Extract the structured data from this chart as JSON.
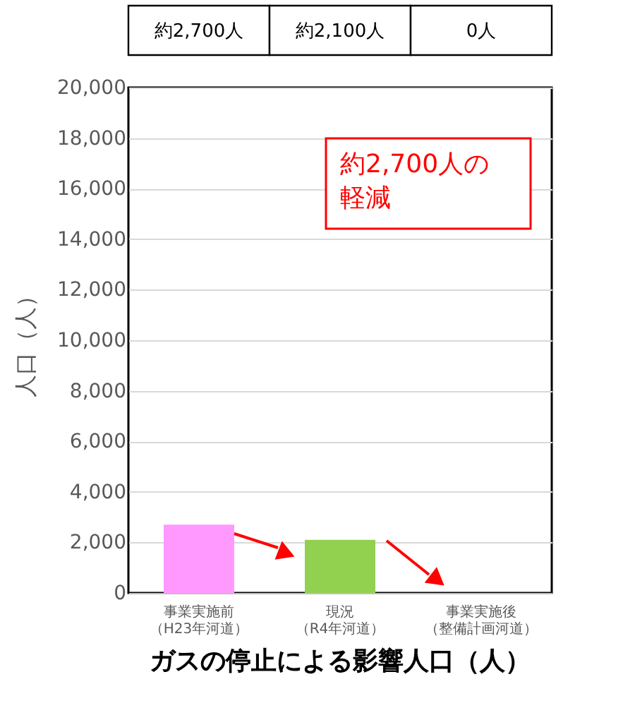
{
  "chart_data": {
    "type": "bar",
    "title": "ガスの停止による影響人口（人）",
    "ylabel": "人口（人）",
    "categories": [
      "事業実施前（H23年河道）",
      "現況（R4年河道）",
      "事業実施後（整備計画河道）"
    ],
    "values": [
      2700,
      2100,
      0
    ],
    "colors": [
      "#ff99ff",
      "#92d050",
      "#4472c4"
    ],
    "value_labels": [
      "約2,700人",
      "約2,100人",
      "0人"
    ],
    "annotations": [
      "約2,700人の軽減"
    ],
    "ylim": [
      0,
      20000
    ],
    "yticks": [
      {
        "value": 0,
        "label": "0"
      },
      {
        "value": 2000,
        "label": "2,000"
      },
      {
        "value": 4000,
        "label": "4,000"
      },
      {
        "value": 6000,
        "label": "6,000"
      },
      {
        "value": 8000,
        "label": "8,000"
      },
      {
        "value": 10000,
        "label": "10,000"
      },
      {
        "value": 12000,
        "label": "12,000"
      },
      {
        "value": 14000,
        "label": "14,000"
      },
      {
        "value": 16000,
        "label": "16,000"
      },
      {
        "value": 18000,
        "label": "18,000"
      },
      {
        "value": 20000,
        "label": "20,000"
      }
    ],
    "grid": "y"
  }
}
